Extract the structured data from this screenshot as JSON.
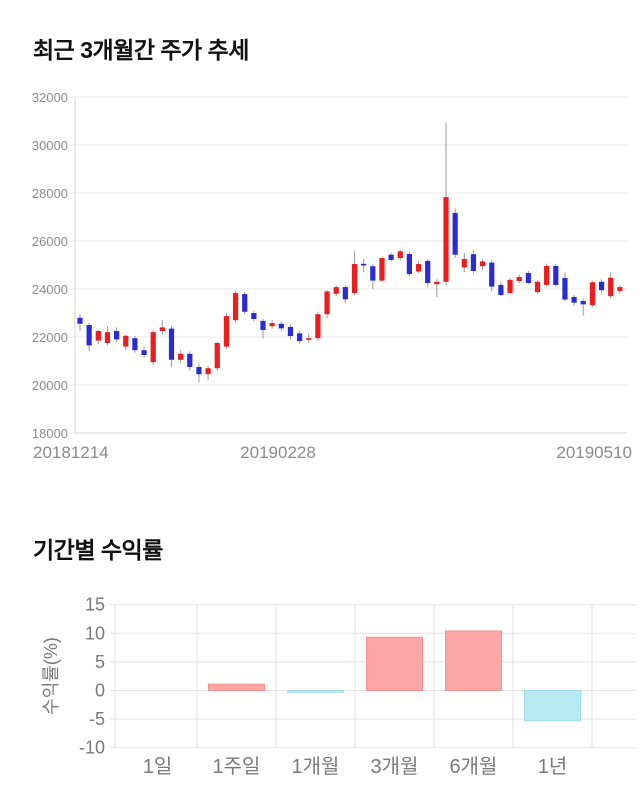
{
  "page": {
    "background": "#ffffff"
  },
  "chart_data": [
    {
      "type": "candlestick",
      "title": "최근 3개월간 주가 추세",
      "xlabel": "",
      "ylabel": "",
      "ylim": [
        18000,
        32000
      ],
      "y_ticks": [
        32000,
        30000,
        28000,
        26000,
        24000,
        22000,
        20000,
        18000
      ],
      "x_axis_labels": [
        "20181214",
        "20190228",
        "20190510"
      ],
      "grid": "horizontal",
      "legend": "none",
      "colors": {
        "up": "#ee1c1c",
        "down": "#2a2ada",
        "wick": "#9a9a9a",
        "grid": "#e8e8e8",
        "axis": "#d6d6d6",
        "tick_text": "#8b8b8b"
      },
      "ohlc": [
        [
          22800,
          22950,
          22250,
          22550
        ],
        [
          22500,
          22600,
          21400,
          21650
        ],
        [
          21850,
          22300,
          21700,
          22250
        ],
        [
          21750,
          22450,
          21650,
          22200
        ],
        [
          22250,
          22400,
          21800,
          21900
        ],
        [
          21600,
          22100,
          21450,
          22050
        ],
        [
          21950,
          22050,
          21350,
          21450
        ],
        [
          21450,
          21600,
          21150,
          21250
        ],
        [
          20950,
          22300,
          20850,
          22200
        ],
        [
          22250,
          22700,
          22100,
          22400
        ],
        [
          22350,
          22450,
          20750,
          21050
        ],
        [
          21050,
          21450,
          20900,
          21300
        ],
        [
          21300,
          21400,
          20600,
          20750
        ],
        [
          20750,
          20900,
          20100,
          20450
        ],
        [
          20450,
          20800,
          20200,
          20700
        ],
        [
          20700,
          21800,
          20600,
          21750
        ],
        [
          21600,
          23000,
          21500,
          22870
        ],
        [
          22700,
          23950,
          22600,
          23830
        ],
        [
          23790,
          23900,
          22950,
          23050
        ],
        [
          23000,
          23100,
          22650,
          22750
        ],
        [
          22670,
          22750,
          21950,
          22290
        ],
        [
          22450,
          22700,
          22350,
          22580
        ],
        [
          22550,
          22650,
          22250,
          22360
        ],
        [
          22420,
          22520,
          21900,
          22040
        ],
        [
          22150,
          22250,
          21700,
          21830
        ],
        [
          21900,
          22150,
          21750,
          21950
        ],
        [
          21950,
          23050,
          21850,
          22950
        ],
        [
          22950,
          23950,
          22800,
          23900
        ],
        [
          23800,
          24150,
          23700,
          24080
        ],
        [
          24080,
          24150,
          23400,
          23570
        ],
        [
          23830,
          25600,
          23750,
          25040
        ],
        [
          25050,
          25250,
          24700,
          24980
        ],
        [
          24950,
          25050,
          24000,
          24350
        ],
        [
          24350,
          25350,
          24300,
          25290
        ],
        [
          25430,
          25500,
          25150,
          25210
        ],
        [
          25290,
          25620,
          25200,
          25570
        ],
        [
          25460,
          25550,
          24550,
          24620
        ],
        [
          24730,
          25150,
          24650,
          25040
        ],
        [
          25170,
          25250,
          24100,
          24250
        ],
        [
          24200,
          24400,
          23660,
          24300
        ],
        [
          24300,
          30930,
          24150,
          27830
        ],
        [
          27170,
          27360,
          25300,
          25430
        ],
        [
          24900,
          25500,
          24700,
          25250
        ],
        [
          25450,
          25600,
          24650,
          24750
        ],
        [
          24950,
          25250,
          24800,
          25150
        ],
        [
          25100,
          25200,
          23900,
          24100
        ],
        [
          24170,
          24300,
          23700,
          23750
        ],
        [
          23830,
          24450,
          23780,
          24380
        ],
        [
          24330,
          24600,
          24250,
          24500
        ],
        [
          24670,
          24750,
          24200,
          24250
        ],
        [
          23870,
          24350,
          23800,
          24300
        ],
        [
          24170,
          25050,
          24100,
          24960
        ],
        [
          24960,
          25050,
          24100,
          24170
        ],
        [
          24460,
          24700,
          23500,
          23560
        ],
        [
          23670,
          23750,
          23300,
          23430
        ],
        [
          23500,
          23600,
          22900,
          23360
        ],
        [
          23330,
          24350,
          23250,
          24280
        ],
        [
          24300,
          24400,
          23850,
          23950
        ],
        [
          23700,
          24700,
          23600,
          24470
        ],
        [
          23920,
          24150,
          23800,
          24080
        ]
      ]
    },
    {
      "type": "bar",
      "title": "기간별 수익률",
      "xlabel": "",
      "ylabel": "수익률(%)",
      "ylim": [
        -10,
        15
      ],
      "y_ticks": [
        15,
        10,
        5,
        0,
        -5,
        -10
      ],
      "grid": "both",
      "legend": "none",
      "categories": [
        "1일",
        "1주일",
        "1개월",
        "3개월",
        "6개월",
        "1년"
      ],
      "values": [
        0,
        1.1,
        -0.15,
        9.3,
        10.4,
        -5.3
      ],
      "colors": {
        "positive": "#fda6a6",
        "positive_stroke": "#fb9090",
        "negative": "#b7e9f0",
        "negative_stroke": "#a1dde8",
        "grid": "#e3e3e3",
        "tick_text": "#7a7a7a"
      }
    }
  ]
}
